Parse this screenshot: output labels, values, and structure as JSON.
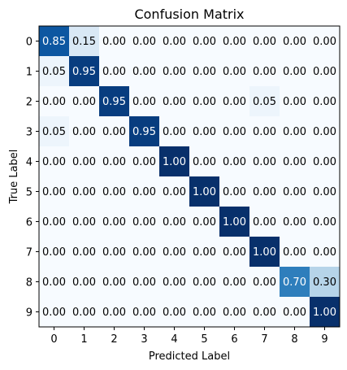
{
  "chart_data": {
    "type": "heatmap",
    "title": "Confusion Matrix",
    "xlabel": "Predicted Label",
    "ylabel": "True Label",
    "x_categories": [
      "0",
      "1",
      "2",
      "3",
      "4",
      "5",
      "6",
      "7",
      "8",
      "9"
    ],
    "y_categories": [
      "0",
      "1",
      "2",
      "3",
      "4",
      "5",
      "6",
      "7",
      "8",
      "9"
    ],
    "colormap": "Blues",
    "value_range": [
      0,
      1
    ],
    "values": [
      [
        0.85,
        0.15,
        0.0,
        0.0,
        0.0,
        0.0,
        0.0,
        0.0,
        0.0,
        0.0
      ],
      [
        0.05,
        0.95,
        0.0,
        0.0,
        0.0,
        0.0,
        0.0,
        0.0,
        0.0,
        0.0
      ],
      [
        0.0,
        0.0,
        0.95,
        0.0,
        0.0,
        0.0,
        0.0,
        0.05,
        0.0,
        0.0
      ],
      [
        0.05,
        0.0,
        0.0,
        0.95,
        0.0,
        0.0,
        0.0,
        0.0,
        0.0,
        0.0
      ],
      [
        0.0,
        0.0,
        0.0,
        0.0,
        1.0,
        0.0,
        0.0,
        0.0,
        0.0,
        0.0
      ],
      [
        0.0,
        0.0,
        0.0,
        0.0,
        0.0,
        1.0,
        0.0,
        0.0,
        0.0,
        0.0
      ],
      [
        0.0,
        0.0,
        0.0,
        0.0,
        0.0,
        0.0,
        1.0,
        0.0,
        0.0,
        0.0
      ],
      [
        0.0,
        0.0,
        0.0,
        0.0,
        0.0,
        0.0,
        0.0,
        1.0,
        0.0,
        0.0
      ],
      [
        0.0,
        0.0,
        0.0,
        0.0,
        0.0,
        0.0,
        0.0,
        0.0,
        0.7,
        0.3
      ],
      [
        0.0,
        0.0,
        0.0,
        0.0,
        0.0,
        0.0,
        0.0,
        0.0,
        0.0,
        1.0
      ]
    ],
    "grid": false,
    "legend": "none"
  }
}
